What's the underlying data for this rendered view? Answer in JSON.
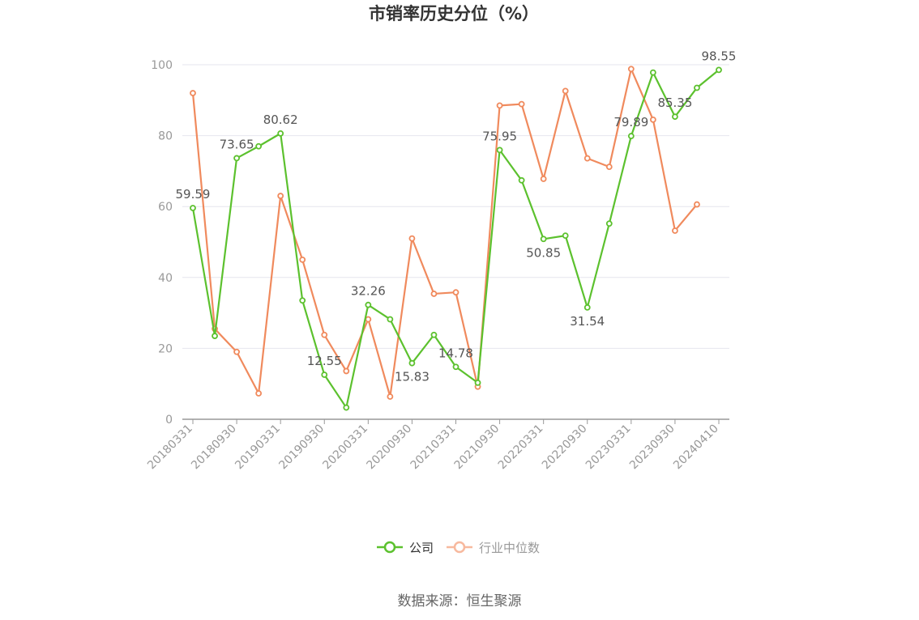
{
  "chart_data": {
    "type": "line",
    "title": "市销率历史分位（%）",
    "source": "数据来源：恒生聚源",
    "ylim": [
      0,
      100
    ],
    "yticks": [
      0,
      20,
      40,
      60,
      80,
      100
    ],
    "grid": true,
    "legend_position": "bottom",
    "x_tick_labels": [
      "20180331",
      "20180930",
      "20190331",
      "20190930",
      "20200331",
      "20200930",
      "20210331",
      "20210930",
      "20220331",
      "20220930",
      "20230331",
      "20230930",
      "20240410"
    ],
    "x": [
      "20180331",
      "20180630",
      "20180930",
      "20181231",
      "20190331",
      "20190630",
      "20190930",
      "20191231",
      "20200331",
      "20200630",
      "20200930",
      "20201231",
      "20210331",
      "20210630",
      "20210930",
      "20211231",
      "20220331",
      "20220630",
      "20220930",
      "20221231",
      "20230331",
      "20230630",
      "20230930",
      "20231231",
      "20240410"
    ],
    "series": [
      {
        "name": "公司",
        "color": "#5cc12e",
        "values": [
          59.59,
          23.5,
          73.65,
          77.0,
          80.62,
          33.5,
          12.55,
          3.3,
          32.26,
          28.2,
          15.83,
          23.8,
          14.78,
          10.3,
          75.95,
          67.4,
          50.85,
          51.8,
          31.54,
          55.2,
          79.89,
          97.8,
          85.35,
          93.5,
          98.55
        ],
        "labels": [
          "59.59",
          "",
          "73.65",
          "",
          "80.62",
          "",
          "12.55",
          "",
          "32.26",
          "",
          "15.83",
          "",
          "14.78",
          "",
          "75.95",
          "",
          "50.85",
          "",
          "31.54",
          "",
          "79.89",
          "",
          "85.35",
          "",
          "98.55"
        ]
      },
      {
        "name": "行业中位数",
        "color": "#f08a5d",
        "values": [
          92.0,
          25.5,
          19.0,
          7.3,
          63.0,
          45.0,
          23.8,
          13.6,
          28.2,
          6.4,
          51.0,
          35.4,
          35.8,
          9.2,
          88.5,
          88.9,
          67.8,
          92.6,
          73.6,
          71.2,
          98.8,
          84.5,
          53.2,
          60.6,
          null
        ]
      }
    ]
  }
}
